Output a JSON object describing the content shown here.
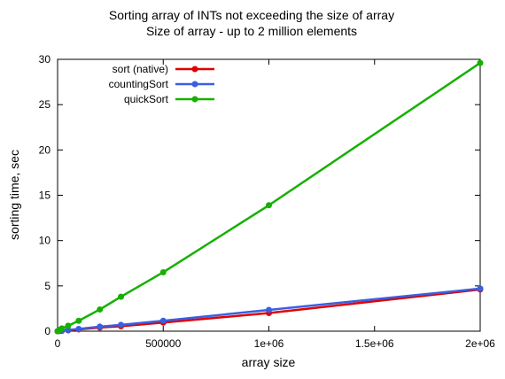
{
  "chart_data": {
    "type": "line",
    "title": "Sorting array of INTs not exceeding the size of array",
    "subtitle": "Size of array - up to 2 million elements",
    "xlabel": "array size",
    "ylabel": "sorting time, sec",
    "xlim": [
      0,
      2000000
    ],
    "ylim": [
      0,
      30
    ],
    "x_ticks": [
      0,
      500000,
      1000000,
      1500000,
      2000000
    ],
    "x_tick_labels": [
      "0",
      "500000",
      "1e+06",
      "1.5e+06",
      "2e+06"
    ],
    "y_ticks": [
      0,
      5,
      10,
      15,
      20,
      25,
      30
    ],
    "y_tick_labels": [
      "0",
      "5",
      "10",
      "15",
      "20",
      "25",
      "30"
    ],
    "grid": false,
    "legend_position": "top-left",
    "x": [
      0,
      10000,
      20000,
      50000,
      100000,
      200000,
      300000,
      500000,
      1000000,
      2000000
    ],
    "series": [
      {
        "name": "sort (native)",
        "color": "#e00000",
        "values": [
          0,
          0.02,
          0.04,
          0.1,
          0.2,
          0.4,
          0.55,
          0.95,
          2.0,
          4.6
        ]
      },
      {
        "name": "countingSort",
        "color": "#3a5fe0",
        "values": [
          0,
          0.03,
          0.06,
          0.13,
          0.25,
          0.5,
          0.7,
          1.15,
          2.35,
          4.7
        ]
      },
      {
        "name": "quickSort",
        "color": "#16b000",
        "values": [
          0,
          0.15,
          0.3,
          0.6,
          1.15,
          2.4,
          3.8,
          6.5,
          13.9,
          29.6
        ]
      }
    ]
  }
}
